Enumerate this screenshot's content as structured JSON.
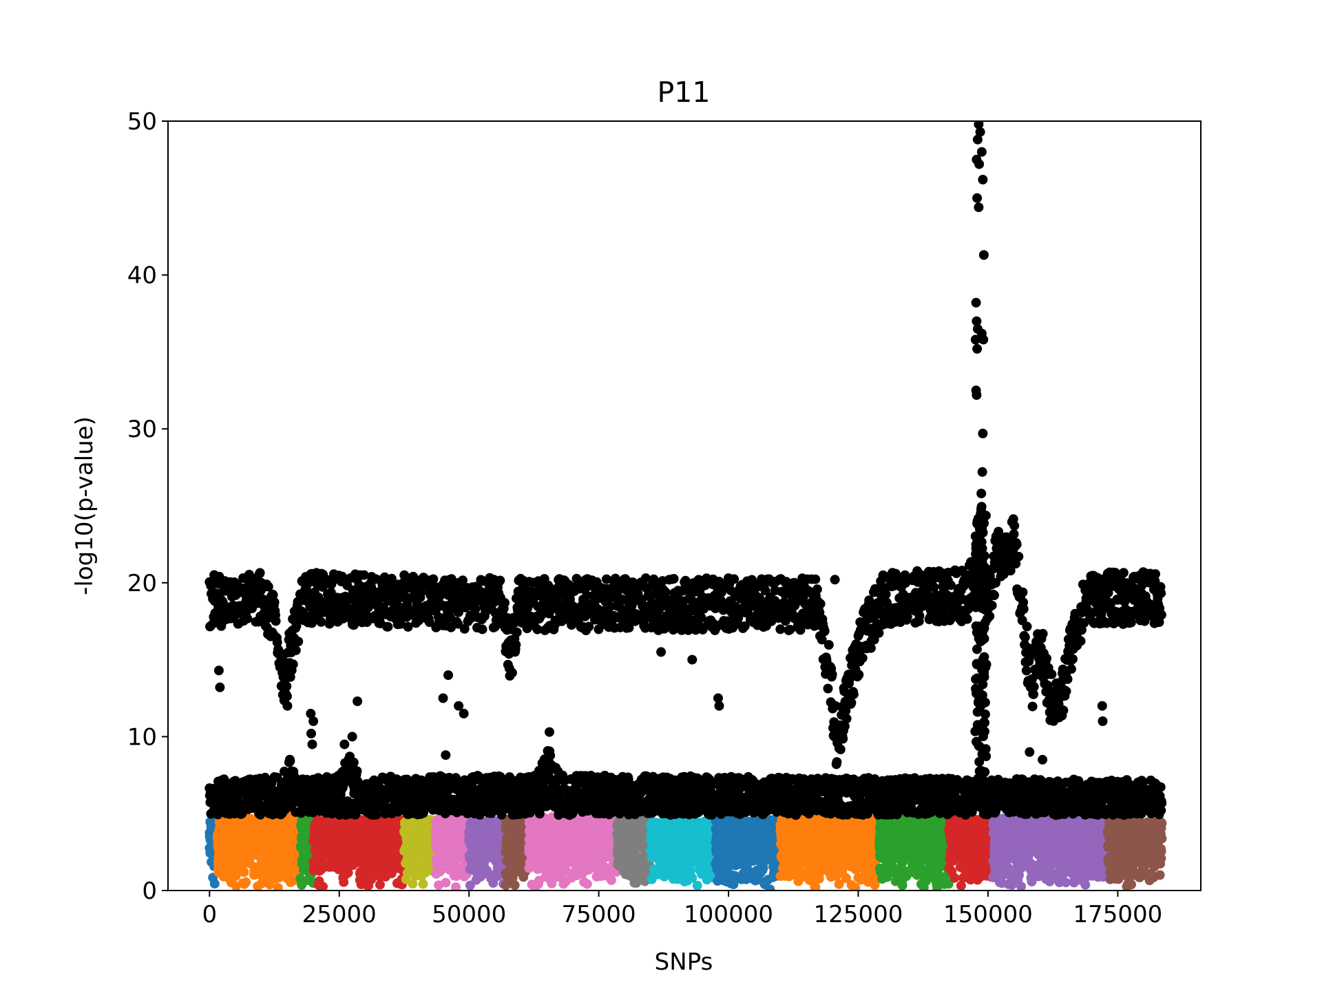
{
  "chart_data": {
    "type": "scatter",
    "title": "P11",
    "xlabel": "SNPs",
    "ylabel": "-log10(p-value)",
    "xlim": [
      -8000,
      191000
    ],
    "ylim": [
      0,
      50
    ],
    "xticks": [
      0,
      25000,
      50000,
      75000,
      100000,
      125000,
      150000,
      175000
    ],
    "xtick_labels": [
      "0",
      "25000",
      "50000",
      "75000",
      "100000",
      "125000",
      "150000",
      "175000"
    ],
    "yticks": [
      0,
      10,
      20,
      30,
      40,
      50
    ],
    "ytick_labels": [
      "0",
      "10",
      "20",
      "30",
      "40",
      "50"
    ],
    "grid": false,
    "legend": "none",
    "highlight_color": "#000000",
    "chromosomes": [
      {
        "start": 0,
        "end": 1500,
        "color": "#1f77b4",
        "max_height": 4.6
      },
      {
        "start": 1500,
        "end": 17500,
        "color": "#ff7f0e",
        "max_height": 4.8
      },
      {
        "start": 17500,
        "end": 20000,
        "color": "#2ca02c",
        "max_height": 4.8
      },
      {
        "start": 20000,
        "end": 37500,
        "color": "#d62728",
        "max_height": 4.6
      },
      {
        "start": 37500,
        "end": 43500,
        "color": "#bcbd22",
        "max_height": 4.6
      },
      {
        "start": 43500,
        "end": 50000,
        "color": "#e377c2",
        "max_height": 4.7
      },
      {
        "start": 50000,
        "end": 57000,
        "color": "#9467bd",
        "max_height": 4.5
      },
      {
        "start": 57000,
        "end": 61500,
        "color": "#8c564b",
        "max_height": 4.6
      },
      {
        "start": 61500,
        "end": 78500,
        "color": "#e377c2",
        "max_height": 4.8
      },
      {
        "start": 78500,
        "end": 85000,
        "color": "#7f7f7f",
        "max_height": 4.6
      },
      {
        "start": 85000,
        "end": 97500,
        "color": "#17becf",
        "max_height": 4.5
      },
      {
        "start": 97500,
        "end": 110000,
        "color": "#1f77b4",
        "max_height": 4.6
      },
      {
        "start": 110000,
        "end": 129000,
        "color": "#ff7f0e",
        "max_height": 4.8
      },
      {
        "start": 129000,
        "end": 142500,
        "color": "#2ca02c",
        "max_height": 4.7
      },
      {
        "start": 142500,
        "end": 151000,
        "color": "#d62728",
        "max_height": 4.7
      },
      {
        "start": 151000,
        "end": 173000,
        "color": "#9467bd",
        "max_height": 4.7
      },
      {
        "start": 173000,
        "end": 183500,
        "color": "#8c564b",
        "max_height": 4.5
      }
    ],
    "upper_band_profile": [
      [
        0,
        18.8
      ],
      [
        10000,
        19.0
      ],
      [
        12500,
        17.5
      ],
      [
        14500,
        13.5
      ],
      [
        16500,
        17.0
      ],
      [
        18000,
        19.0
      ],
      [
        56000,
        18.6
      ],
      [
        58000,
        15.0
      ],
      [
        59500,
        18.6
      ],
      [
        117000,
        18.6
      ],
      [
        119500,
        14.0
      ],
      [
        121000,
        9.0
      ],
      [
        122500,
        12.5
      ],
      [
        126000,
        16.5
      ],
      [
        130000,
        19.0
      ],
      [
        146000,
        19.2
      ],
      [
        148500,
        22.0
      ],
      [
        150000,
        19.0
      ],
      [
        152000,
        22.0
      ],
      [
        155000,
        22.5
      ],
      [
        157000,
        17.0
      ],
      [
        158500,
        13.0
      ],
      [
        160000,
        16.0
      ],
      [
        162000,
        12.5
      ],
      [
        164000,
        12.0
      ],
      [
        166000,
        16.0
      ],
      [
        169000,
        19.0
      ],
      [
        183500,
        19.0
      ]
    ],
    "lower_band_profile": [
      [
        0,
        6.0
      ],
      [
        14000,
        6.2
      ],
      [
        15500,
        7.5
      ],
      [
        17000,
        6.0
      ],
      [
        25000,
        6.3
      ],
      [
        27000,
        7.8
      ],
      [
        29000,
        6.2
      ],
      [
        63000,
        6.3
      ],
      [
        65500,
        8.2
      ],
      [
        67500,
        6.3
      ],
      [
        183500,
        6.0
      ]
    ],
    "peak_points": [
      [
        148200,
        49.8
      ],
      [
        148500,
        49.3
      ],
      [
        148000,
        48.8
      ],
      [
        148800,
        48.0
      ],
      [
        147800,
        47.5
      ],
      [
        148300,
        47.2
      ],
      [
        149000,
        46.2
      ],
      [
        147900,
        45.0
      ],
      [
        148200,
        44.4
      ],
      [
        149200,
        41.3
      ],
      [
        147700,
        38.2
      ],
      [
        147800,
        37.0
      ],
      [
        148000,
        36.5
      ],
      [
        147600,
        35.8
      ],
      [
        148800,
        36.2
      ],
      [
        149100,
        35.8
      ],
      [
        147900,
        35.2
      ],
      [
        147700,
        32.5
      ],
      [
        147800,
        32.2
      ],
      [
        149000,
        29.7
      ],
      [
        148900,
        27.2
      ],
      [
        148700,
        25.8
      ],
      [
        148600,
        24.5
      ],
      [
        148400,
        23.5
      ]
    ],
    "outlier_points": [
      [
        15000,
        12.0
      ],
      [
        19500,
        11.5
      ],
      [
        20000,
        11.0
      ],
      [
        19600,
        10.2
      ],
      [
        19800,
        9.5
      ],
      [
        26000,
        9.5
      ],
      [
        27500,
        10.0
      ],
      [
        28500,
        12.3
      ],
      [
        45000,
        12.5
      ],
      [
        46000,
        14.0
      ],
      [
        48000,
        12.0
      ],
      [
        49000,
        11.5
      ],
      [
        45500,
        8.8
      ],
      [
        65500,
        10.3
      ],
      [
        98000,
        12.5
      ],
      [
        98200,
        12.0
      ],
      [
        87000,
        15.5
      ],
      [
        93000,
        15.0
      ],
      [
        120500,
        20.2
      ],
      [
        172000,
        12.0
      ],
      [
        172100,
        11.0
      ],
      [
        160500,
        8.5
      ],
      [
        158000,
        9.0
      ],
      [
        2000,
        13.2
      ],
      [
        1800,
        14.3
      ]
    ]
  }
}
